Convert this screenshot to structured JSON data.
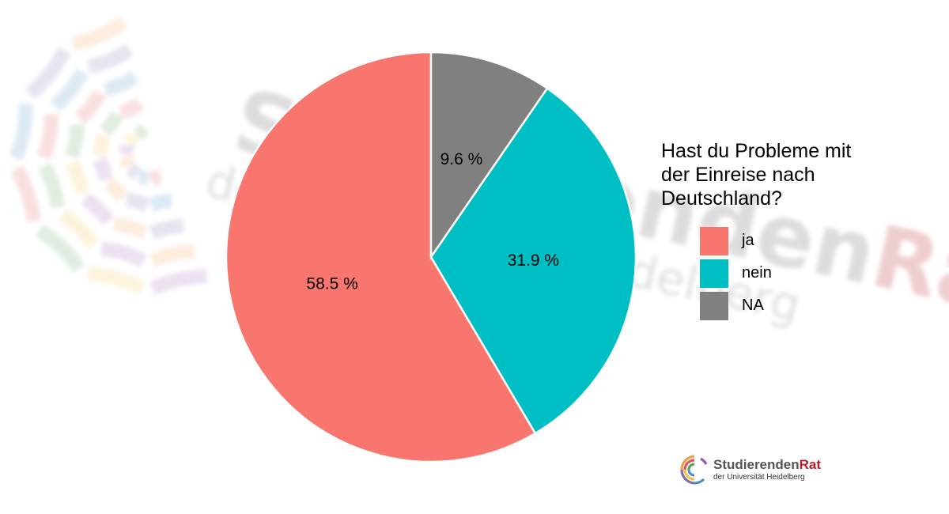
{
  "chart_data": {
    "type": "pie",
    "legend_title": "Hast du Probleme mit\nder Einreise nach\nDeutschland?",
    "legend_position": "right",
    "slices": [
      {
        "name": "ja",
        "value": 58.5,
        "label": "58.5 %",
        "color": "#F8766D"
      },
      {
        "name": "nein",
        "value": 31.9,
        "label": "31.9 %",
        "color": "#00BFC4"
      },
      {
        "name": "NA",
        "value": 9.6,
        "label": "9.6 %",
        "color": "#808080"
      }
    ],
    "direction": "counterclockwise-from-top"
  },
  "watermark": {
    "line1_part1": "Studierenden",
    "line1_part2": "Rat",
    "line2": "der Universität Heidelberg"
  },
  "logo": {
    "name_part1": "Studierenden",
    "name_part2": "Rat",
    "subtitle": "der Universität Heidelberg"
  },
  "colors": {
    "logo_dark": "#555555",
    "logo_accent": "#b5232a"
  }
}
